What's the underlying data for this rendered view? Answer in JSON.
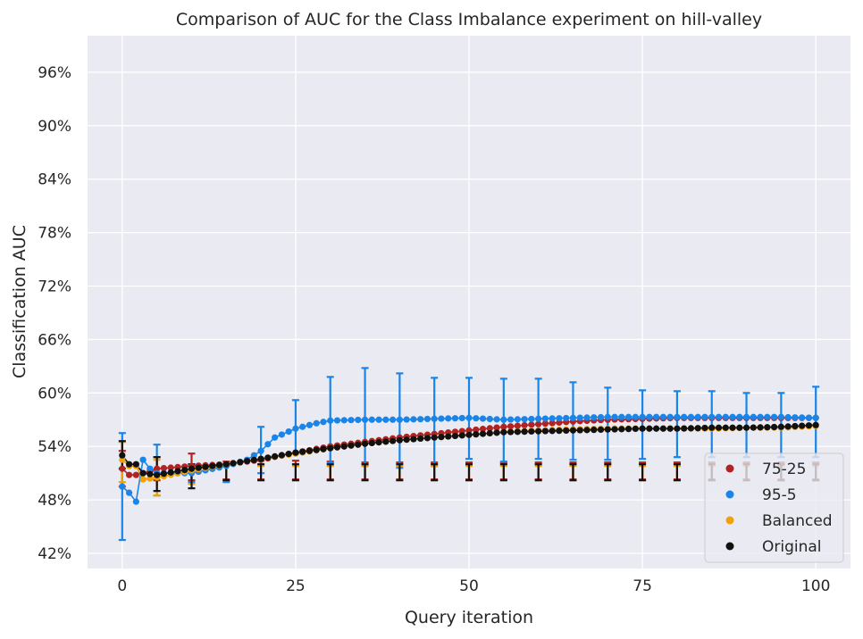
{
  "chart_data": {
    "type": "scatter",
    "title": "Comparison of AUC for the Class Imbalance experiment on hill-valley",
    "xlabel": "Query iteration",
    "ylabel": "Classification AUC",
    "xlim": [
      -5,
      105
    ],
    "ylim": [
      40.3,
      100.1
    ],
    "x_ticks": [
      0,
      25,
      50,
      75,
      100
    ],
    "x_tick_labels": [
      "0",
      "25",
      "50",
      "75",
      "100"
    ],
    "y_ticks": [
      42,
      48,
      54,
      60,
      66,
      72,
      78,
      84,
      90,
      96
    ],
    "y_tick_labels": [
      "42%",
      "48%",
      "54%",
      "60%",
      "66%",
      "72%",
      "78%",
      "84%",
      "90%",
      "96%"
    ],
    "grid": true,
    "legend_position": "lower-right",
    "background": "#eaeaf2",
    "error_bar_x": [
      0,
      5,
      10,
      15,
      20,
      25,
      30,
      35,
      40,
      45,
      50,
      55,
      60,
      65,
      70,
      75,
      80,
      85,
      90,
      95,
      100
    ],
    "series": [
      {
        "name": "75-25",
        "color": "#b22222",
        "anchors": [
          [
            0,
            51.5
          ],
          [
            1,
            50.8
          ],
          [
            2,
            50.8
          ],
          [
            3,
            51
          ],
          [
            5,
            51.5
          ],
          [
            10,
            51.8
          ],
          [
            15,
            52
          ],
          [
            20,
            52.5
          ],
          [
            25,
            53.3
          ],
          [
            30,
            54
          ],
          [
            35,
            54.5
          ],
          [
            40,
            55
          ],
          [
            45,
            55.4
          ],
          [
            50,
            55.8
          ],
          [
            55,
            56.2
          ],
          [
            60,
            56.5
          ],
          [
            65,
            56.8
          ],
          [
            70,
            57
          ],
          [
            75,
            57.1
          ],
          [
            80,
            57.2
          ],
          [
            85,
            57.2
          ],
          [
            90,
            57.2
          ],
          [
            95,
            57.2
          ],
          [
            100,
            57.2
          ]
        ],
        "error_low": [
          49.5,
          50.2,
          50.2,
          50.3,
          50.3,
          50.3,
          50.3,
          50.3,
          50.3,
          50.3,
          50.3,
          50.3,
          50.3,
          50.3,
          50.3,
          50.3,
          50.3,
          50.3,
          50.3,
          50.3,
          50.3
        ],
        "error_high": [
          53.5,
          52.8,
          53.2,
          52.3,
          52.4,
          52.4,
          52.3,
          52.2,
          52.2,
          52.2,
          52.2,
          52.2,
          52.2,
          52.2,
          52.2,
          52.2,
          52.2,
          52.2,
          52.2,
          52.2,
          52.2
        ]
      },
      {
        "name": "95-5",
        "color": "#1a85e8",
        "anchors": [
          [
            0,
            49.5
          ],
          [
            1,
            48.8
          ],
          [
            2,
            47.8
          ],
          [
            3,
            52.5
          ],
          [
            4,
            51.5
          ],
          [
            5,
            51
          ],
          [
            8,
            51
          ],
          [
            10,
            51
          ],
          [
            15,
            51.8
          ],
          [
            18,
            52.5
          ],
          [
            20,
            53.5
          ],
          [
            22,
            55
          ],
          [
            25,
            56
          ],
          [
            28,
            56.6
          ],
          [
            30,
            56.9
          ],
          [
            35,
            57
          ],
          [
            40,
            57
          ],
          [
            45,
            57.1
          ],
          [
            50,
            57.2
          ],
          [
            55,
            57
          ],
          [
            60,
            57.1
          ],
          [
            65,
            57.2
          ],
          [
            70,
            57.3
          ],
          [
            75,
            57.3
          ],
          [
            80,
            57.3
          ],
          [
            85,
            57.3
          ],
          [
            90,
            57.3
          ],
          [
            95,
            57.3
          ],
          [
            100,
            57.2
          ]
        ],
        "error_low": [
          43.5,
          48.5,
          50,
          50,
          51,
          53.2,
          52.2,
          51.8,
          51.6,
          51.8,
          52.6,
          52.3,
          52.6,
          52.5,
          52.5,
          52.6,
          52.8,
          52.8,
          52.8,
          52.8,
          52.8
        ],
        "error_high": [
          55.5,
          54.2,
          52,
          52,
          56.2,
          59.2,
          61.8,
          62.8,
          62.2,
          61.7,
          61.7,
          61.6,
          61.6,
          61.2,
          60.6,
          60.3,
          60.2,
          60.2,
          60,
          60,
          60.7
        ]
      },
      {
        "name": "Balanced",
        "color": "#f2a007",
        "anchors": [
          [
            0,
            52.5
          ],
          [
            1,
            51.8
          ],
          [
            2,
            51.8
          ],
          [
            3,
            50.3
          ],
          [
            5,
            50.5
          ],
          [
            10,
            51.3
          ],
          [
            15,
            52
          ],
          [
            20,
            52.6
          ],
          [
            25,
            53.2
          ],
          [
            30,
            53.8
          ],
          [
            35,
            54.3
          ],
          [
            40,
            54.7
          ],
          [
            45,
            55
          ],
          [
            50,
            55.3
          ],
          [
            55,
            55.6
          ],
          [
            60,
            55.8
          ],
          [
            65,
            55.9
          ],
          [
            70,
            56
          ],
          [
            75,
            56
          ],
          [
            80,
            56
          ],
          [
            85,
            56
          ],
          [
            90,
            56.1
          ],
          [
            95,
            56.1
          ],
          [
            100,
            56.3
          ]
        ],
        "error_low": [
          50,
          48.5,
          49.8,
          50.2,
          50.2,
          50.2,
          50.2,
          50.2,
          50.2,
          50.2,
          50.2,
          50.2,
          50.2,
          50.2,
          50.2,
          50.2,
          50.2,
          50.2,
          50.2,
          50.2,
          50.2
        ],
        "error_high": [
          54.5,
          52.5,
          51.8,
          51.8,
          51.8,
          51.8,
          51.8,
          51.8,
          51.8,
          51.8,
          51.8,
          51.8,
          51.8,
          51.8,
          51.8,
          51.8,
          51.8,
          51.8,
          51.8,
          51.8,
          51.8
        ]
      },
      {
        "name": "Original",
        "color": "#111111",
        "anchors": [
          [
            0,
            53
          ],
          [
            1,
            52
          ],
          [
            2,
            52
          ],
          [
            3,
            51
          ],
          [
            5,
            50.8
          ],
          [
            10,
            51.5
          ],
          [
            15,
            52
          ],
          [
            20,
            52.6
          ],
          [
            25,
            53.3
          ],
          [
            30,
            53.8
          ],
          [
            35,
            54.3
          ],
          [
            40,
            54.7
          ],
          [
            45,
            55
          ],
          [
            50,
            55.3
          ],
          [
            55,
            55.6
          ],
          [
            60,
            55.7
          ],
          [
            65,
            55.8
          ],
          [
            70,
            55.9
          ],
          [
            75,
            56
          ],
          [
            80,
            56
          ],
          [
            85,
            56.1
          ],
          [
            90,
            56.1
          ],
          [
            95,
            56.2
          ],
          [
            100,
            56.4
          ]
        ],
        "error_low": [
          51.5,
          49,
          49.3,
          50.2,
          50.2,
          50.2,
          50.2,
          50.2,
          50.2,
          50.2,
          50.2,
          50.2,
          50.2,
          50.2,
          50.2,
          50.2,
          50.2,
          50.2,
          50.2,
          50.2,
          50.2
        ],
        "error_high": [
          54.6,
          52.8,
          52,
          52,
          52,
          52,
          52,
          52,
          52,
          52,
          52,
          52,
          52,
          52,
          52,
          52,
          52,
          52,
          52,
          52,
          52
        ]
      }
    ]
  }
}
